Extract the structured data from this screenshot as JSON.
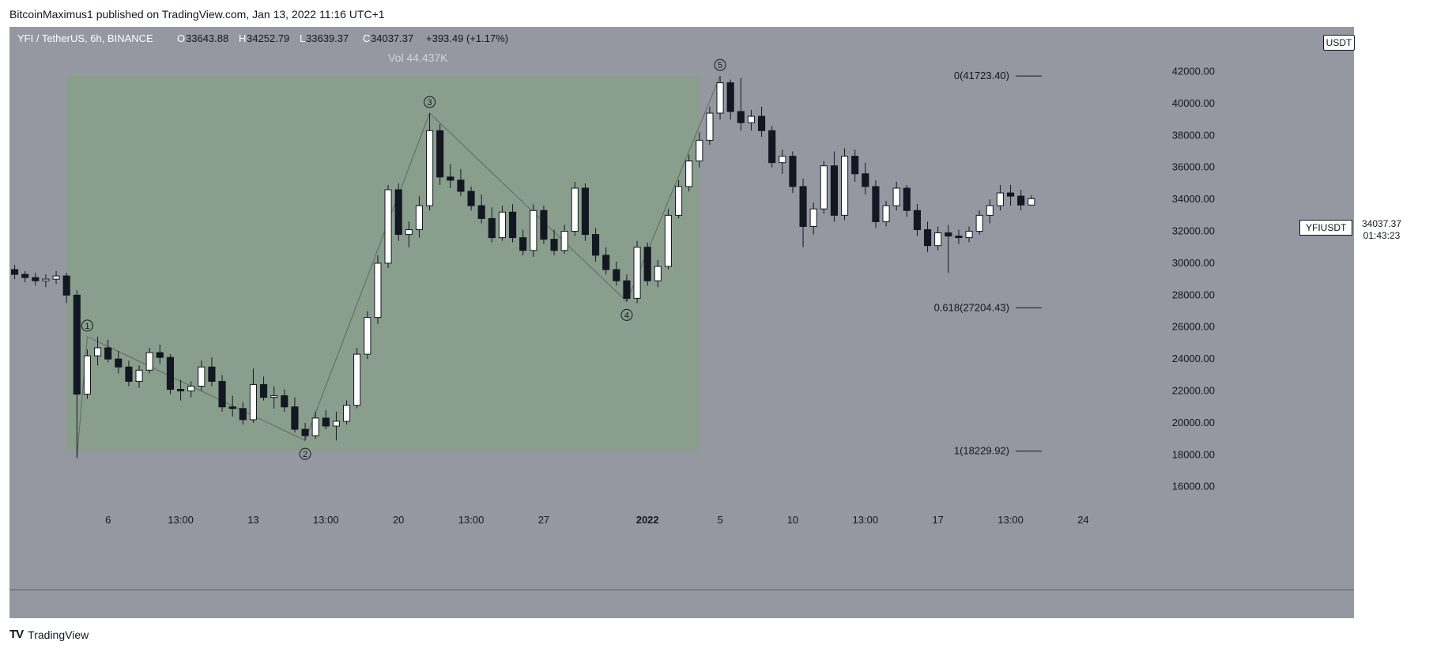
{
  "header": {
    "published": "BitcoinMaximus1 published on TradingView.com, Jan 13, 2022 11:16 UTC+1"
  },
  "legend": {
    "symbol": "YFI / TetherUS, 6h, BINANCE",
    "o_label": "O",
    "o_value": "33643.88",
    "h_label": "H",
    "h_value": "34252.79",
    "l_label": "L",
    "l_value": "33639.37",
    "c_label": "C",
    "c_value": "34037.37",
    "change": "+393.49 (+1.17%)",
    "volume": "Vol 44.437K"
  },
  "price_scale": {
    "currency": "USDT",
    "symbol_tag": "YFIUSDT",
    "last_price": "34037.37",
    "countdown": "01:43:23"
  },
  "fib_levels": [
    {
      "label": "0(41723.40)",
      "price": 41723.4
    },
    {
      "label": "0.618(27204.43)",
      "price": 27204.43
    },
    {
      "label": "1(18229.92)",
      "price": 18229.92
    }
  ],
  "waves": [
    {
      "label": "1",
      "price": 25400,
      "bar": 7,
      "pos": "above"
    },
    {
      "label": "2",
      "price": 18900,
      "bar": 28,
      "pos": "below"
    },
    {
      "label": "3",
      "price": 39400,
      "bar": 40,
      "pos": "above"
    },
    {
      "label": "4",
      "price": 27600,
      "bar": 59,
      "pos": "below"
    },
    {
      "label": "5",
      "price": 41723,
      "bar": 68,
      "pos": "above"
    }
  ],
  "footer": {
    "brand": "TradingView",
    "logo": "TV"
  },
  "chart_data": {
    "type": "candlestick",
    "timeframe": "6h",
    "y_ticks": [
      16000,
      18000,
      20000,
      22000,
      24000,
      26000,
      28000,
      30000,
      32000,
      34000,
      36000,
      38000,
      40000,
      42000
    ],
    "y_tick_labels": [
      "16000.00",
      "18000.00",
      "20000.00",
      "22000.00",
      "24000.00",
      "26000.00",
      "28000.00",
      "30000.00",
      "32000.00",
      "34000.00",
      "36000.00",
      "38000.00",
      "40000.00",
      "42000.00"
    ],
    "ylim": [
      14500,
      44800
    ],
    "x_ticks": [
      {
        "bar": 9,
        "label": "6"
      },
      {
        "bar": 16,
        "label": "13:00"
      },
      {
        "bar": 23,
        "label": "13"
      },
      {
        "bar": 30,
        "label": "13:00"
      },
      {
        "bar": 37,
        "label": "20"
      },
      {
        "bar": 44,
        "label": "13:00"
      },
      {
        "bar": 51,
        "label": "27"
      },
      {
        "bar": 61,
        "label": "2022",
        "bold": true
      },
      {
        "bar": 68,
        "label": "5"
      },
      {
        "bar": 75,
        "label": "10"
      },
      {
        "bar": 82,
        "label": "13:00"
      },
      {
        "bar": 89,
        "label": "17"
      },
      {
        "bar": 96,
        "label": "13:00"
      },
      {
        "bar": 103,
        "label": "24"
      }
    ],
    "x_range": [
      -0.5,
      111.5
    ],
    "highlight": {
      "from_bar": 5,
      "to_bar": 66,
      "top": 41723.4,
      "bottom": 18229.92
    },
    "ohlc": [
      [
        29600,
        29900,
        29000,
        29300
      ],
      [
        29300,
        29500,
        28800,
        29100
      ],
      [
        29100,
        29400,
        28600,
        28900
      ],
      [
        28900,
        29300,
        28500,
        29000
      ],
      [
        29000,
        29500,
        28700,
        29200
      ],
      [
        29200,
        29400,
        27500,
        28000
      ],
      [
        28000,
        28300,
        17800,
        21800
      ],
      [
        21800,
        24600,
        21500,
        24200
      ],
      [
        24200,
        25400,
        23600,
        24700
      ],
      [
        24700,
        25200,
        23800,
        24000
      ],
      [
        24000,
        24500,
        23100,
        23500
      ],
      [
        23500,
        23900,
        22300,
        22600
      ],
      [
        22600,
        23600,
        22200,
        23300
      ],
      [
        23300,
        24700,
        23100,
        24400
      ],
      [
        24400,
        24900,
        23700,
        24100
      ],
      [
        24100,
        24300,
        21800,
        22100
      ],
      [
        22100,
        22700,
        21400,
        22000
      ],
      [
        22000,
        22600,
        21600,
        22300
      ],
      [
        22300,
        23900,
        22000,
        23500
      ],
      [
        23500,
        24100,
        22300,
        22600
      ],
      [
        22600,
        23000,
        20700,
        21000
      ],
      [
        21000,
        21700,
        20400,
        20900
      ],
      [
        20900,
        21300,
        19900,
        20200
      ],
      [
        20200,
        23400,
        20000,
        22400
      ],
      [
        22400,
        22900,
        21400,
        21600
      ],
      [
        21600,
        22300,
        20900,
        21700
      ],
      [
        21700,
        22100,
        20700,
        21000
      ],
      [
        21000,
        21600,
        19400,
        19600
      ],
      [
        19600,
        20000,
        18900,
        19200
      ],
      [
        19200,
        20700,
        19000,
        20300
      ],
      [
        20300,
        20800,
        19600,
        19800
      ],
      [
        19800,
        20700,
        18900,
        20100
      ],
      [
        20100,
        21400,
        19900,
        21100
      ],
      [
        21100,
        24700,
        20900,
        24300
      ],
      [
        24300,
        27000,
        24000,
        26600
      ],
      [
        26600,
        30500,
        26200,
        30000
      ],
      [
        30000,
        34900,
        29700,
        34600
      ],
      [
        34600,
        35000,
        31400,
        31800
      ],
      [
        31800,
        32600,
        31000,
        32100
      ],
      [
        32100,
        34200,
        31600,
        33600
      ],
      [
        33600,
        39400,
        33300,
        38300
      ],
      [
        38300,
        38700,
        34900,
        35400
      ],
      [
        35400,
        36200,
        34700,
        35200
      ],
      [
        35200,
        35900,
        34200,
        34500
      ],
      [
        34500,
        34800,
        33300,
        33600
      ],
      [
        33600,
        34300,
        32500,
        32800
      ],
      [
        32800,
        33500,
        31300,
        31600
      ],
      [
        31600,
        33600,
        31400,
        33200
      ],
      [
        33200,
        33700,
        31300,
        31600
      ],
      [
        31600,
        32100,
        30500,
        30800
      ],
      [
        30800,
        33700,
        30400,
        33300
      ],
      [
        33300,
        33600,
        31200,
        31500
      ],
      [
        31500,
        32100,
        30500,
        30800
      ],
      [
        30800,
        32400,
        30600,
        32000
      ],
      [
        32000,
        35100,
        31700,
        34700
      ],
      [
        34700,
        35000,
        31400,
        31800
      ],
      [
        31800,
        32200,
        30100,
        30500
      ],
      [
        30500,
        31000,
        29300,
        29600
      ],
      [
        29600,
        30100,
        28600,
        28900
      ],
      [
        28900,
        29300,
        27600,
        27800
      ],
      [
        27800,
        31400,
        27500,
        31000
      ],
      [
        31000,
        31300,
        28600,
        28900
      ],
      [
        28900,
        30200,
        28500,
        29800
      ],
      [
        29800,
        33400,
        29600,
        33000
      ],
      [
        33000,
        35200,
        32800,
        34800
      ],
      [
        34800,
        36800,
        34500,
        36400
      ],
      [
        36400,
        38200,
        36000,
        37700
      ],
      [
        37700,
        39800,
        37400,
        39400
      ],
      [
        39400,
        41723,
        39000,
        41300
      ],
      [
        41300,
        41500,
        39000,
        39500
      ],
      [
        39500,
        41600,
        38300,
        38800
      ],
      [
        38800,
        39600,
        38300,
        39200
      ],
      [
        39200,
        39800,
        37900,
        38300
      ],
      [
        38300,
        38600,
        36000,
        36300
      ],
      [
        36300,
        37100,
        35600,
        36700
      ],
      [
        36700,
        37000,
        34400,
        34800
      ],
      [
        34800,
        35300,
        31000,
        32300
      ],
      [
        32300,
        33800,
        31800,
        33400
      ],
      [
        33400,
        36400,
        33100,
        36100
      ],
      [
        36100,
        37000,
        32600,
        33000
      ],
      [
        33000,
        37200,
        32700,
        36700
      ],
      [
        36700,
        37100,
        35100,
        35600
      ],
      [
        35600,
        36300,
        34300,
        34800
      ],
      [
        34800,
        35200,
        32200,
        32600
      ],
      [
        32600,
        33900,
        32300,
        33600
      ],
      [
        33600,
        35100,
        33300,
        34700
      ],
      [
        34700,
        34900,
        32900,
        33300
      ],
      [
        33300,
        33700,
        31700,
        32100
      ],
      [
        32100,
        32600,
        30700,
        31100
      ],
      [
        31100,
        32300,
        30800,
        31900
      ],
      [
        31900,
        32400,
        29400,
        31700
      ],
      [
        31700,
        32100,
        31200,
        31600
      ],
      [
        31600,
        32300,
        31300,
        32000
      ],
      [
        32000,
        33300,
        31800,
        33000
      ],
      [
        33000,
        34000,
        32500,
        33600
      ],
      [
        33600,
        34900,
        33300,
        34400
      ],
      [
        34400,
        34900,
        33600,
        34200
      ],
      [
        34200,
        34600,
        33300,
        33643.88
      ],
      [
        33643.88,
        34252.79,
        33639.37,
        34037.37
      ]
    ]
  }
}
